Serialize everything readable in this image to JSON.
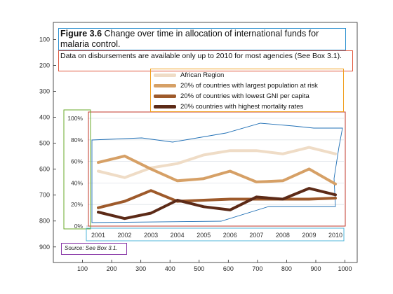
{
  "figure": {
    "title_bold": "Figure 3.6",
    "title_rest": " Change over time in allocation of international funds for malaria control.",
    "subtitle": "Data on disbursements are available only up to 2010 for most agencies (See Box 3.1).",
    "source": "Source: See Box 3.1."
  },
  "chart_data": {
    "type": "line",
    "title": "Change over time in allocation of international funds for malaria control.",
    "x": [
      "2001",
      "2002",
      "2003",
      "2004",
      "2005",
      "2006",
      "2007",
      "2008",
      "2009",
      "2010"
    ],
    "y_ticks": [
      "0%",
      "20%",
      "40%",
      "60%",
      "80%",
      "100%"
    ],
    "ylim": [
      0,
      100
    ],
    "grid": "horizontal",
    "legend_position": "top-right",
    "series": [
      {
        "name": "African Region",
        "color": "#efdcc6",
        "values": [
          51,
          45,
          54,
          58,
          66,
          70,
          70,
          67,
          73,
          67
        ]
      },
      {
        "name": "20% of countries with largest population at risk",
        "color": "#d6a066",
        "values": [
          59,
          65,
          53,
          42,
          44,
          51,
          41,
          42,
          53,
          39
        ]
      },
      {
        "name": "20% of countries with lowest GNI per capita",
        "color": "#9e5a2b",
        "values": [
          17,
          23,
          33,
          23,
          24,
          25,
          25,
          25,
          25,
          26
        ]
      },
      {
        "name": "20% countries with highest mortality rates",
        "color": "#5c2a17",
        "values": [
          13,
          7,
          12,
          24,
          18,
          15,
          27,
          25,
          35,
          29
        ]
      }
    ]
  },
  "overlay_axes": {
    "x_ticks": [
      "100",
      "200",
      "300",
      "400",
      "500",
      "600",
      "700",
      "800",
      "900",
      "1000"
    ],
    "y_ticks": [
      "100",
      "200",
      "300",
      "400",
      "500",
      "600",
      "700",
      "800",
      "900"
    ]
  },
  "colors": {
    "title_box": "#2a8fcf",
    "subtitle_box": "#e0553a",
    "legend_box": "#f0a020",
    "plot_box": "#c0392b",
    "y_axis_box": "#6aaa2a",
    "x_axis_box": "#4fb4d8",
    "source_box": "#8a3aa8",
    "region_outline": "#1f6fb5"
  }
}
